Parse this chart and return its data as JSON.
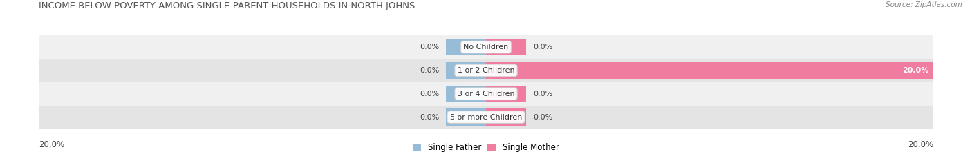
{
  "title": "INCOME BELOW POVERTY AMONG SINGLE-PARENT HOUSEHOLDS IN NORTH JOHNS",
  "source": "Source: ZipAtlas.com",
  "categories": [
    "No Children",
    "1 or 2 Children",
    "3 or 4 Children",
    "5 or more Children"
  ],
  "single_father": [
    0.0,
    0.0,
    0.0,
    0.0
  ],
  "single_mother": [
    0.0,
    20.0,
    0.0,
    0.0
  ],
  "max_val": 20.0,
  "father_color": "#96bcd8",
  "mother_color": "#f07ca0",
  "row_bg_light": "#f0f0f0",
  "row_bg_dark": "#e4e4e4",
  "title_color": "#555555",
  "label_color": "#444444",
  "source_color": "#888888",
  "title_fontsize": 9.5,
  "label_fontsize": 8,
  "tick_fontsize": 8.5,
  "source_fontsize": 7.5,
  "cat_fontsize": 8
}
